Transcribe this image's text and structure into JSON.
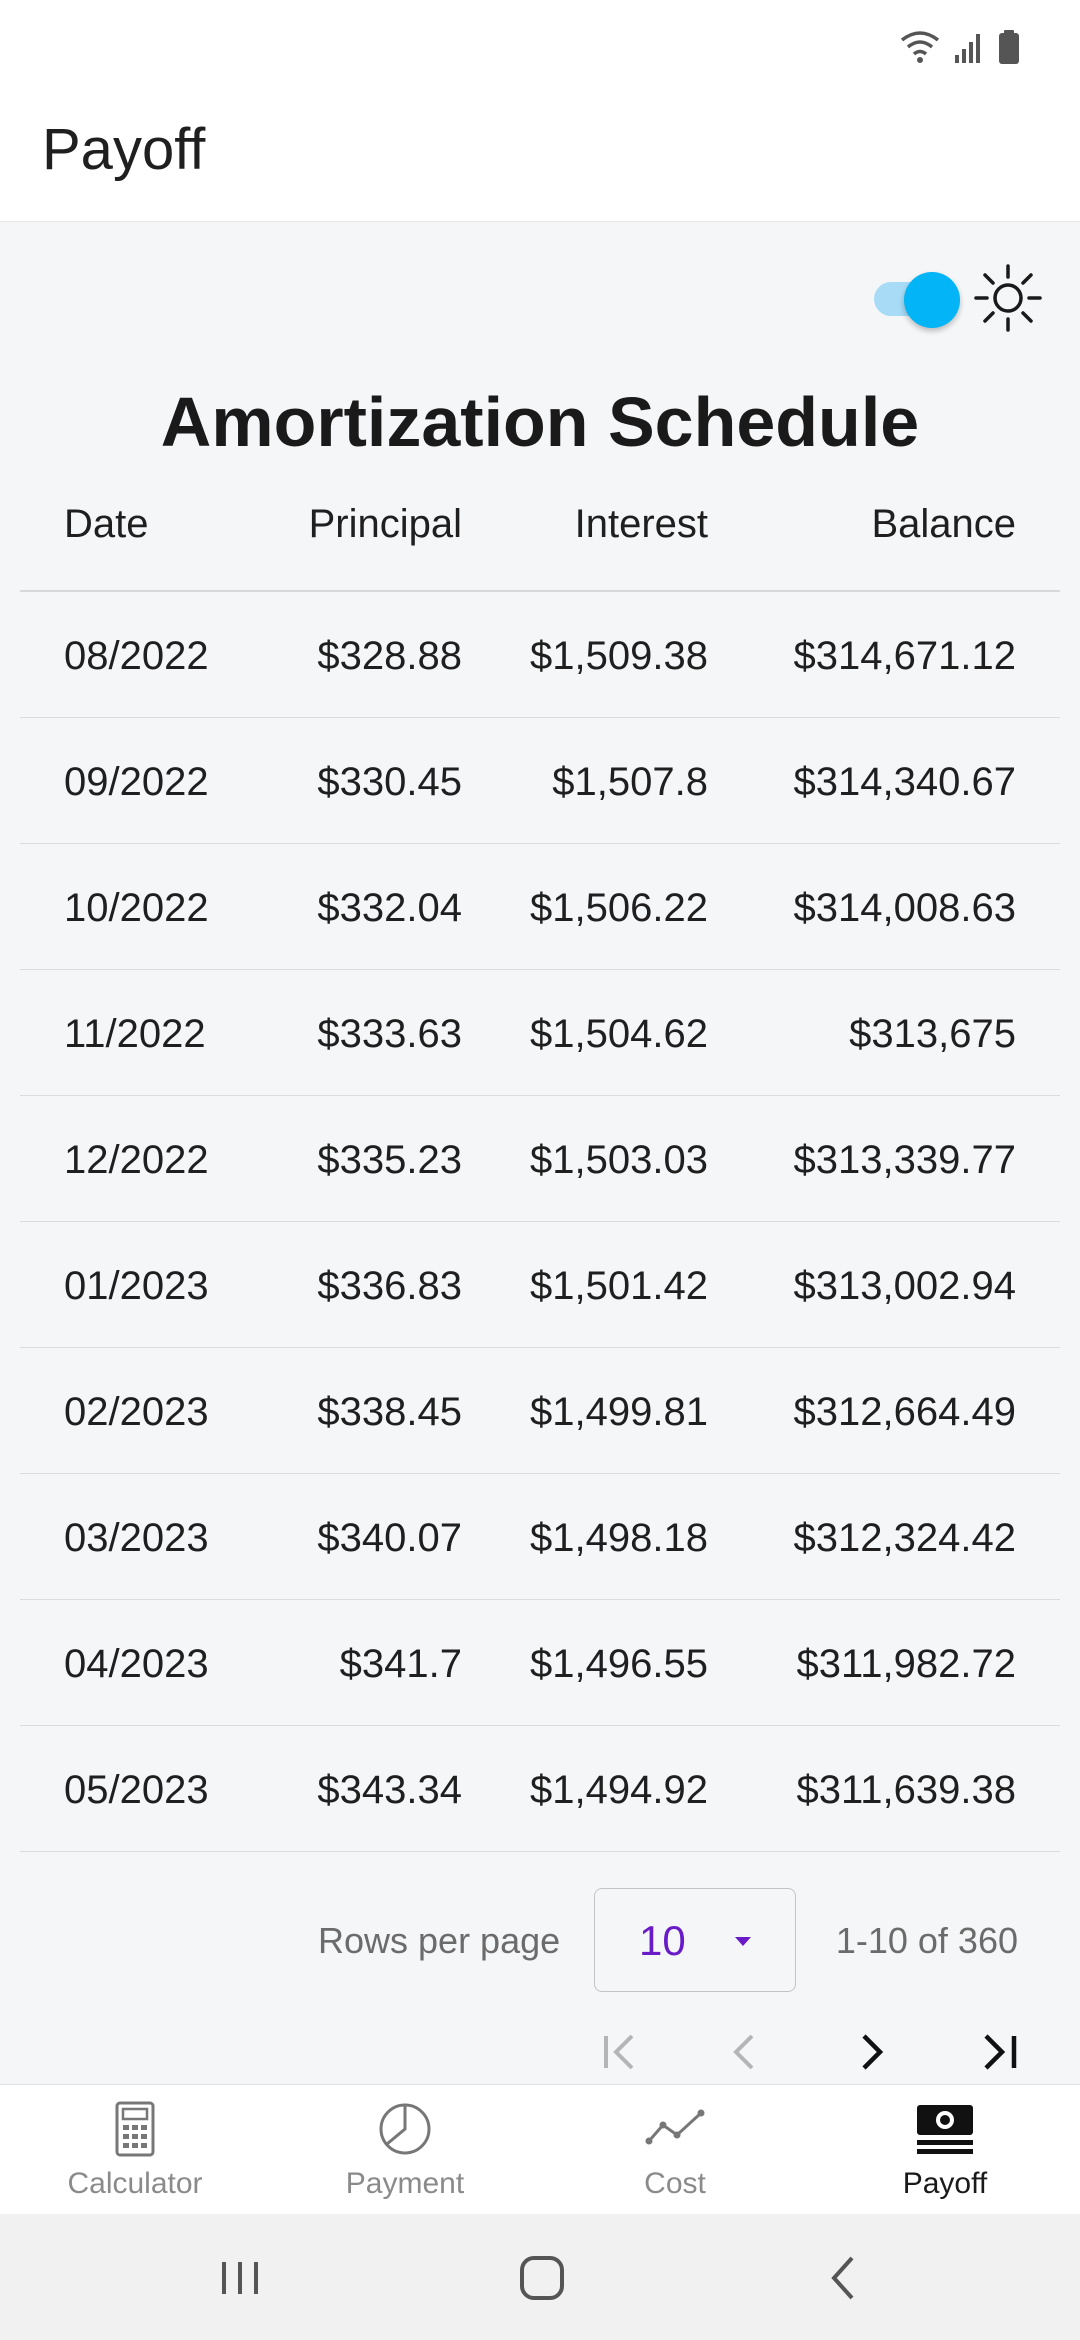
{
  "app": {
    "title": "Payoff"
  },
  "theme": {
    "toggle_on": true,
    "accent": "#03b4f6",
    "select_accent": "#6a1bc8"
  },
  "schedule": {
    "title": "Amortization Schedule",
    "columns": {
      "date": "Date",
      "principal": "Principal",
      "interest": "Interest",
      "balance": "Balance"
    },
    "rows": [
      {
        "date": "08/2022",
        "principal": "$328.88",
        "interest": "$1,509.38",
        "balance": "$314,671.12"
      },
      {
        "date": "09/2022",
        "principal": "$330.45",
        "interest": "$1,507.8",
        "balance": "$314,340.67"
      },
      {
        "date": "10/2022",
        "principal": "$332.04",
        "interest": "$1,506.22",
        "balance": "$314,008.63"
      },
      {
        "date": "11/2022",
        "principal": "$333.63",
        "interest": "$1,504.62",
        "balance": "$313,675"
      },
      {
        "date": "12/2022",
        "principal": "$335.23",
        "interest": "$1,503.03",
        "balance": "$313,339.77"
      },
      {
        "date": "01/2023",
        "principal": "$336.83",
        "interest": "$1,501.42",
        "balance": "$313,002.94"
      },
      {
        "date": "02/2023",
        "principal": "$338.45",
        "interest": "$1,499.81",
        "balance": "$312,664.49"
      },
      {
        "date": "03/2023",
        "principal": "$340.07",
        "interest": "$1,498.18",
        "balance": "$312,324.42"
      },
      {
        "date": "04/2023",
        "principal": "$341.7",
        "interest": "$1,496.55",
        "balance": "$311,982.72"
      },
      {
        "date": "05/2023",
        "principal": "$343.34",
        "interest": "$1,494.92",
        "balance": "$311,639.38"
      }
    ]
  },
  "pagination": {
    "rows_per_page_label": "Rows per page",
    "rows_per_page_value": "10",
    "range_text": "1-10 of 360"
  },
  "bottom_nav": {
    "items": [
      {
        "label": "Calculator",
        "icon": "calculator-icon"
      },
      {
        "label": "Payment",
        "icon": "pie-chart-icon"
      },
      {
        "label": "Cost",
        "icon": "line-chart-icon"
      },
      {
        "label": "Payoff",
        "icon": "money-icon"
      }
    ],
    "active": "Payoff"
  }
}
